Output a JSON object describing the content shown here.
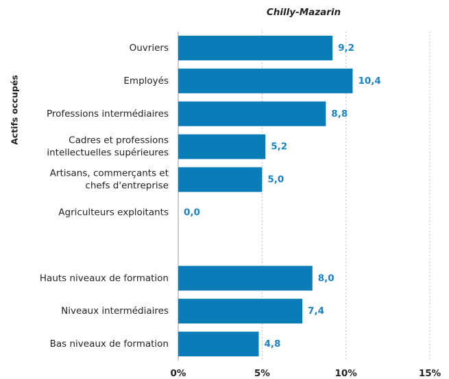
{
  "chart_data": {
    "type": "barh",
    "title": "Chilly-Mazarin",
    "ylabel": "Actifs occupés",
    "categories": [
      "Ouvriers",
      "Employés",
      "Professions intermédiaires",
      "Cadres et professions\nintellectuelles supérieures",
      "Artisans, commerçants et\nchefs d'entreprise",
      "Agriculteurs exploitants",
      null,
      "Hauts niveaux de formation",
      "Niveaux intermédiaires",
      "Bas niveaux de formation"
    ],
    "values": [
      9.2,
      10.4,
      8.8,
      5.2,
      5.0,
      0.0,
      null,
      8.0,
      7.4,
      4.8
    ],
    "value_labels": [
      "9,2",
      "10,4",
      "8,8",
      "5,2",
      "5,0",
      "0,0",
      null,
      "8,0",
      "7,4",
      "4,8"
    ],
    "color": "#0a7db8",
    "label_color": "#1a82c0",
    "xlim": [
      0,
      15
    ],
    "xticks": [
      {
        "value": 0,
        "label": "0%"
      },
      {
        "value": 5,
        "label": "5%"
      },
      {
        "value": 10,
        "label": "10%"
      },
      {
        "value": 15,
        "label": "15%"
      }
    ],
    "grid": true
  }
}
